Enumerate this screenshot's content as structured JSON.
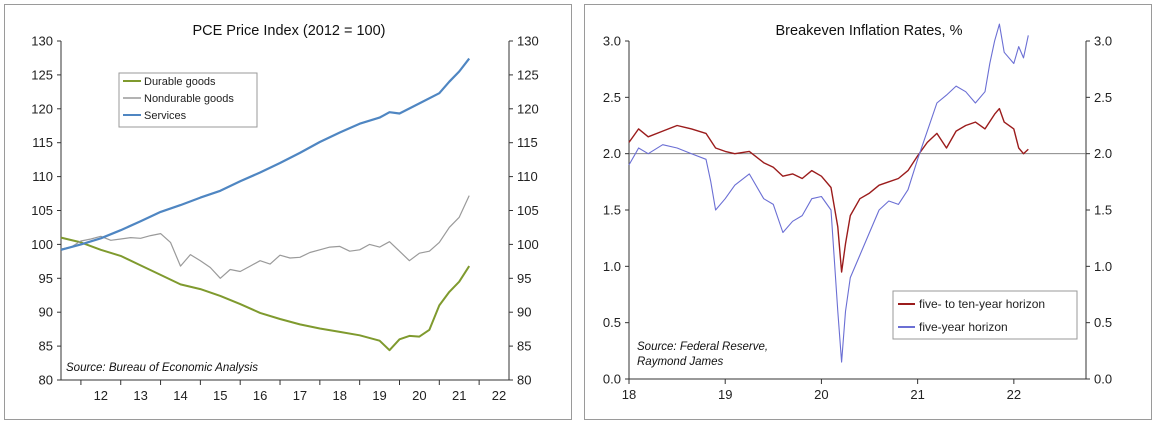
{
  "chart_data": [
    {
      "type": "line",
      "title": "PCE Price Index (2012 = 100)",
      "xlabel": "",
      "ylabel": "",
      "x_ticks": [
        "12",
        "13",
        "14",
        "15",
        "16",
        "17",
        "18",
        "19",
        "20",
        "21",
        "22"
      ],
      "ylim": [
        80,
        130
      ],
      "y_ticks": [
        80,
        85,
        90,
        95,
        100,
        105,
        110,
        115,
        120,
        125,
        130
      ],
      "y_axis": "both",
      "grid": false,
      "legend": "top-left",
      "source": "Source: Bureau of Economic Analysis",
      "series": [
        {
          "name": "Durable goods",
          "color": "#7f9a2e",
          "points": [
            [
              2011.5,
              101.0
            ],
            [
              2012.0,
              100.3
            ],
            [
              2012.5,
              99.2
            ],
            [
              2013.0,
              98.3
            ],
            [
              2013.5,
              96.9
            ],
            [
              2014.0,
              95.5
            ],
            [
              2014.5,
              94.1
            ],
            [
              2015.0,
              93.4
            ],
            [
              2015.5,
              92.4
            ],
            [
              2016.0,
              91.2
            ],
            [
              2016.5,
              89.9
            ],
            [
              2017.0,
              89.0
            ],
            [
              2017.5,
              88.2
            ],
            [
              2018.0,
              87.6
            ],
            [
              2018.5,
              87.1
            ],
            [
              2019.0,
              86.6
            ],
            [
              2019.5,
              85.8
            ],
            [
              2019.75,
              84.4
            ],
            [
              2020.0,
              86.0
            ],
            [
              2020.25,
              86.5
            ],
            [
              2020.5,
              86.4
            ],
            [
              2020.75,
              87.4
            ],
            [
              2021.0,
              91.0
            ],
            [
              2021.25,
              93.0
            ],
            [
              2021.5,
              94.5
            ],
            [
              2021.75,
              96.8
            ]
          ]
        },
        {
          "name": "Nondurable goods",
          "color": "#9a9a9a",
          "points": [
            [
              2011.5,
              99.3
            ],
            [
              2011.75,
              99.6
            ],
            [
              2012.0,
              100.5
            ],
            [
              2012.25,
              100.8
            ],
            [
              2012.5,
              101.2
            ],
            [
              2012.75,
              100.6
            ],
            [
              2013.0,
              100.8
            ],
            [
              2013.25,
              101.0
            ],
            [
              2013.5,
              100.9
            ],
            [
              2013.75,
              101.3
            ],
            [
              2014.0,
              101.6
            ],
            [
              2014.25,
              100.3
            ],
            [
              2014.5,
              96.8
            ],
            [
              2014.75,
              98.5
            ],
            [
              2015.0,
              97.6
            ],
            [
              2015.25,
              96.6
            ],
            [
              2015.5,
              95.0
            ],
            [
              2015.75,
              96.3
            ],
            [
              2016.0,
              96.0
            ],
            [
              2016.25,
              96.8
            ],
            [
              2016.5,
              97.6
            ],
            [
              2016.75,
              97.1
            ],
            [
              2017.0,
              98.4
            ],
            [
              2017.25,
              98.0
            ],
            [
              2017.5,
              98.1
            ],
            [
              2017.75,
              98.8
            ],
            [
              2018.0,
              99.2
            ],
            [
              2018.25,
              99.6
            ],
            [
              2018.5,
              99.7
            ],
            [
              2018.75,
              99.0
            ],
            [
              2019.0,
              99.2
            ],
            [
              2019.25,
              100.0
            ],
            [
              2019.5,
              99.6
            ],
            [
              2019.75,
              100.4
            ],
            [
              2020.0,
              99.0
            ],
            [
              2020.25,
              97.6
            ],
            [
              2020.5,
              98.7
            ],
            [
              2020.75,
              99.0
            ],
            [
              2021.0,
              100.3
            ],
            [
              2021.25,
              102.5
            ],
            [
              2021.5,
              104.0
            ],
            [
              2021.75,
              107.2
            ]
          ]
        },
        {
          "name": "Services",
          "color": "#4f86c2",
          "points": [
            [
              2011.5,
              99.2
            ],
            [
              2012.0,
              100.0
            ],
            [
              2012.5,
              100.9
            ],
            [
              2013.0,
              102.1
            ],
            [
              2013.5,
              103.4
            ],
            [
              2014.0,
              104.8
            ],
            [
              2014.5,
              105.8
            ],
            [
              2015.0,
              106.9
            ],
            [
              2015.5,
              107.9
            ],
            [
              2016.0,
              109.3
            ],
            [
              2016.5,
              110.6
            ],
            [
              2017.0,
              112.0
            ],
            [
              2017.5,
              113.5
            ],
            [
              2018.0,
              115.1
            ],
            [
              2018.5,
              116.5
            ],
            [
              2019.0,
              117.8
            ],
            [
              2019.5,
              118.7
            ],
            [
              2019.75,
              119.5
            ],
            [
              2020.0,
              119.3
            ],
            [
              2020.5,
              120.8
            ],
            [
              2021.0,
              122.3
            ],
            [
              2021.25,
              124.0
            ],
            [
              2021.5,
              125.5
            ],
            [
              2021.75,
              127.4
            ]
          ]
        }
      ]
    },
    {
      "type": "line",
      "title": "Breakeven Inflation Rates, %",
      "xlabel": "",
      "ylabel": "",
      "x_ticks": [
        "18",
        "19",
        "20",
        "21",
        "22"
      ],
      "ylim": [
        0.0,
        3.0
      ],
      "y_ticks": [
        "0.0",
        "0.5",
        "1.0",
        "1.5",
        "2.0",
        "2.5",
        "3.0"
      ],
      "y_axis": "both",
      "reference_line": 2.0,
      "grid": false,
      "legend": "bottom-right",
      "source": "Source: Federal Reserve, Raymond James",
      "series": [
        {
          "name": "five- to ten-year horizon",
          "color": "#9b1c1c",
          "points": [
            [
              2018.0,
              2.1
            ],
            [
              2018.1,
              2.22
            ],
            [
              2018.2,
              2.15
            ],
            [
              2018.35,
              2.2
            ],
            [
              2018.5,
              2.25
            ],
            [
              2018.65,
              2.22
            ],
            [
              2018.8,
              2.18
            ],
            [
              2018.9,
              2.05
            ],
            [
              2019.0,
              2.02
            ],
            [
              2019.1,
              2.0
            ],
            [
              2019.25,
              2.02
            ],
            [
              2019.4,
              1.92
            ],
            [
              2019.5,
              1.88
            ],
            [
              2019.6,
              1.8
            ],
            [
              2019.7,
              1.82
            ],
            [
              2019.8,
              1.78
            ],
            [
              2019.9,
              1.85
            ],
            [
              2020.0,
              1.8
            ],
            [
              2020.1,
              1.7
            ],
            [
              2020.17,
              1.35
            ],
            [
              2020.21,
              0.95
            ],
            [
              2020.25,
              1.2
            ],
            [
              2020.3,
              1.45
            ],
            [
              2020.4,
              1.6
            ],
            [
              2020.5,
              1.65
            ],
            [
              2020.6,
              1.72
            ],
            [
              2020.7,
              1.75
            ],
            [
              2020.8,
              1.78
            ],
            [
              2020.9,
              1.85
            ],
            [
              2021.0,
              1.98
            ],
            [
              2021.1,
              2.1
            ],
            [
              2021.2,
              2.18
            ],
            [
              2021.3,
              2.05
            ],
            [
              2021.4,
              2.2
            ],
            [
              2021.5,
              2.25
            ],
            [
              2021.6,
              2.28
            ],
            [
              2021.7,
              2.22
            ],
            [
              2021.8,
              2.35
            ],
            [
              2021.85,
              2.4
            ],
            [
              2021.9,
              2.28
            ],
            [
              2022.0,
              2.22
            ],
            [
              2022.05,
              2.05
            ],
            [
              2022.1,
              2.0
            ],
            [
              2022.15,
              2.04
            ]
          ]
        },
        {
          "name": "five-year horizon",
          "color": "#6b6fd4",
          "points": [
            [
              2018.0,
              1.9
            ],
            [
              2018.1,
              2.05
            ],
            [
              2018.2,
              2.0
            ],
            [
              2018.35,
              2.08
            ],
            [
              2018.5,
              2.05
            ],
            [
              2018.65,
              2.0
            ],
            [
              2018.8,
              1.95
            ],
            [
              2018.85,
              1.75
            ],
            [
              2018.9,
              1.5
            ],
            [
              2019.0,
              1.6
            ],
            [
              2019.1,
              1.72
            ],
            [
              2019.25,
              1.82
            ],
            [
              2019.4,
              1.6
            ],
            [
              2019.5,
              1.55
            ],
            [
              2019.6,
              1.3
            ],
            [
              2019.7,
              1.4
            ],
            [
              2019.8,
              1.45
            ],
            [
              2019.9,
              1.6
            ],
            [
              2020.0,
              1.62
            ],
            [
              2020.1,
              1.5
            ],
            [
              2020.17,
              0.6
            ],
            [
              2020.21,
              0.15
            ],
            [
              2020.25,
              0.6
            ],
            [
              2020.3,
              0.9
            ],
            [
              2020.4,
              1.1
            ],
            [
              2020.5,
              1.3
            ],
            [
              2020.6,
              1.5
            ],
            [
              2020.7,
              1.58
            ],
            [
              2020.8,
              1.55
            ],
            [
              2020.9,
              1.68
            ],
            [
              2021.0,
              1.95
            ],
            [
              2021.1,
              2.2
            ],
            [
              2021.2,
              2.45
            ],
            [
              2021.3,
              2.52
            ],
            [
              2021.4,
              2.6
            ],
            [
              2021.5,
              2.55
            ],
            [
              2021.6,
              2.45
            ],
            [
              2021.7,
              2.55
            ],
            [
              2021.75,
              2.8
            ],
            [
              2021.8,
              3.0
            ],
            [
              2021.85,
              3.15
            ],
            [
              2021.9,
              2.9
            ],
            [
              2022.0,
              2.8
            ],
            [
              2022.05,
              2.95
            ],
            [
              2022.1,
              2.85
            ],
            [
              2022.15,
              3.05
            ]
          ]
        }
      ]
    }
  ]
}
